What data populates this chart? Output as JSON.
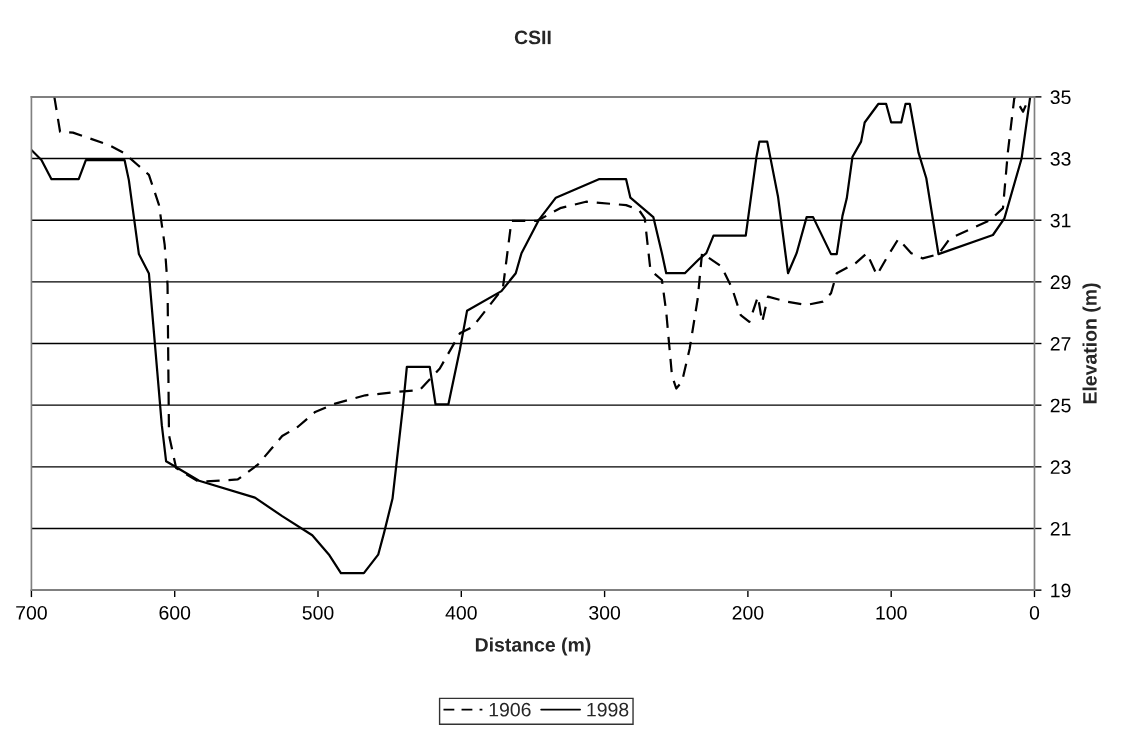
{
  "chart_data": {
    "type": "line",
    "title": "CSII",
    "xlabel": "Distance (m)",
    "ylabel": "Elevation (m)",
    "xlim": [
      700,
      0
    ],
    "xticks": [
      700,
      600,
      500,
      400,
      300,
      200,
      100,
      0
    ],
    "ylim": [
      19,
      35
    ],
    "yticks": [
      19,
      21,
      23,
      25,
      27,
      29,
      31,
      33,
      35
    ],
    "grid": "y",
    "legend": "bottom",
    "marker": "none",
    "series": [
      {
        "name": "1906",
        "color": "#000000",
        "line_style": "dashed",
        "x": [
          684,
          680,
          671,
          646,
          635,
          626,
          618,
          611,
          607,
          605,
          604,
          599,
          583,
          556,
          542,
          525,
          514,
          502,
          488,
          467,
          440.5,
          429,
          415,
          401,
          392,
          371,
          365,
          347,
          331,
          313,
          285,
          276,
          272,
          268,
          260,
          257,
          253,
          250,
          246,
          240.6,
          235,
          232,
          218.5,
          211,
          205,
          199,
          193,
          190,
          186,
          173,
          159,
          147.6,
          142,
          138,
          125,
          117,
          110,
          102,
          95,
          86,
          78,
          67,
          59,
          31,
          22,
          18.6,
          14,
          8,
          3.5
        ],
        "values": [
          35,
          33.87,
          33.84,
          33.44,
          33.17,
          32.8,
          32.47,
          31.5,
          30.2,
          28.9,
          24.03,
          22.96,
          22.51,
          22.59,
          23.07,
          24.0,
          24.3,
          24.78,
          25.05,
          25.32,
          25.45,
          25.49,
          26.19,
          27.33,
          27.54,
          28.79,
          30.98,
          30.98,
          31.39,
          31.6,
          31.49,
          31.33,
          31.06,
          29.38,
          29.06,
          28.03,
          25.97,
          25.54,
          25.76,
          26.84,
          28.46,
          29.93,
          29.5,
          28.79,
          27.92,
          27.7,
          28.52,
          27.7,
          28.52,
          28.36,
          28.25,
          28.36,
          28.63,
          29.28,
          29.6,
          29.93,
          29.22,
          29.87,
          30.39,
          29.93,
          29.76,
          29.9,
          30.41,
          31.0,
          31.39,
          33.2,
          35.0,
          34.52,
          35.0
        ]
      },
      {
        "name": "1998",
        "color": "#000000",
        "line_style": "solid",
        "x": [
          700,
          693,
          686,
          667,
          662,
          635,
          632,
          625,
          618,
          609,
          606,
          583,
          544,
          525,
          504,
          492,
          484,
          468,
          458,
          454,
          448,
          440.5,
          438,
          422,
          418,
          409,
          401,
          396,
          372,
          362,
          358,
          346,
          334,
          304,
          285,
          282,
          266,
          260,
          257,
          244,
          234,
          229,
          224,
          201.5,
          194,
          192,
          186.5,
          179,
          172,
          166,
          159,
          154.5,
          142,
          138,
          134,
          131,
          127,
          121,
          118.5,
          109,
          103.5,
          100,
          93,
          90,
          87,
          81,
          75.5,
          67,
          29,
          21,
          9,
          3
        ],
        "values": [
          33.28,
          32.95,
          32.33,
          32.33,
          32.95,
          32.95,
          32.3,
          29.9,
          29.27,
          24.35,
          23.18,
          22.55,
          22.0,
          21.4,
          20.78,
          20.13,
          19.55,
          19.55,
          20.15,
          20.84,
          21.97,
          25.05,
          26.24,
          26.24,
          25.03,
          25.03,
          26.8,
          28.06,
          28.7,
          29.28,
          29.93,
          31.0,
          31.73,
          32.33,
          32.33,
          31.73,
          31.1,
          29.93,
          29.28,
          29.28,
          29.74,
          29.93,
          30.5,
          30.5,
          33.06,
          33.55,
          33.55,
          31.77,
          29.28,
          29.93,
          31.1,
          31.1,
          29.9,
          29.9,
          31.14,
          31.71,
          33.06,
          33.55,
          34.17,
          34.77,
          34.77,
          34.17,
          34.17,
          34.77,
          34.77,
          33.2,
          32.36,
          29.9,
          30.52,
          31.06,
          33.0,
          35.0
        ]
      }
    ]
  }
}
